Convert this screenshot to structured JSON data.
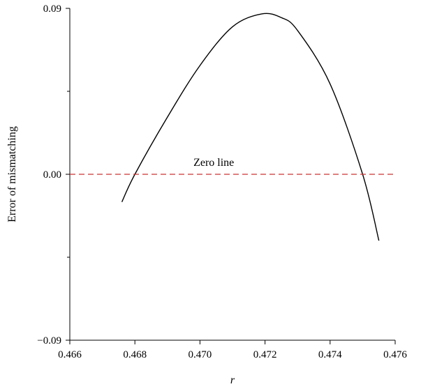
{
  "chart_data": {
    "type": "line",
    "title": "",
    "xlabel": "r",
    "ylabel": "Error of mismatching",
    "xlim": [
      0.466,
      0.476
    ],
    "ylim": [
      -0.09,
      0.09
    ],
    "x_ticks": [
      0.466,
      0.468,
      0.47,
      0.472,
      0.474,
      0.476
    ],
    "x_tick_labels": [
      "0.466",
      "0.468",
      "0.470",
      "0.472",
      "0.474",
      "0.476"
    ],
    "y_ticks": [
      -0.09,
      0.0,
      0.09
    ],
    "y_tick_labels": [
      "−0.09",
      "0.00",
      "0.09"
    ],
    "y_minor_ticks": [
      -0.045,
      0.045
    ],
    "grid": false,
    "series": [
      {
        "color": "#000000",
        "line_style": "solid",
        "x": [
          0.4676,
          0.468,
          0.469,
          0.47,
          0.471,
          0.4719,
          0.4725,
          0.473,
          0.474,
          0.475,
          0.4755
        ],
        "y": [
          -0.015,
          0.0,
          0.031,
          0.059,
          0.08,
          0.087,
          0.085,
          0.078,
          0.049,
          0.0,
          -0.036
        ]
      },
      {
        "name": "Zero line",
        "color": "#cc3333",
        "line_style": "dashed",
        "x": [
          0.466,
          0.476
        ],
        "y": [
          0.0,
          0.0
        ]
      }
    ],
    "annotations": [
      {
        "text": "Zero line",
        "x": 0.4698,
        "y": 0.003
      }
    ]
  }
}
